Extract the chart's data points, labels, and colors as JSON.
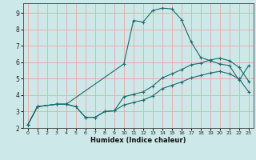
{
  "xlabel": "Humidex (Indice chaleur)",
  "bg_color": "#cce8e8",
  "line_color": "#1a6b6b",
  "grid_color": "#e8a8a8",
  "xlim": [
    -0.5,
    23.5
  ],
  "ylim": [
    2,
    9.6
  ],
  "xticks": [
    0,
    1,
    2,
    3,
    4,
    5,
    6,
    7,
    8,
    9,
    10,
    11,
    12,
    13,
    14,
    15,
    16,
    17,
    18,
    19,
    20,
    21,
    22,
    23
  ],
  "yticks": [
    2,
    3,
    4,
    5,
    6,
    7,
    8,
    9
  ],
  "series": {
    "peak": {
      "x": [
        0,
        1,
        3,
        4,
        10,
        11,
        12,
        13,
        14,
        15,
        16,
        17,
        18,
        19,
        20,
        21,
        22,
        23
      ],
      "y": [
        2.2,
        3.3,
        3.45,
        3.45,
        5.9,
        8.55,
        8.45,
        9.15,
        9.3,
        9.25,
        8.6,
        7.25,
        6.3,
        6.1,
        5.9,
        5.8,
        4.9,
        5.8
      ]
    },
    "upper": {
      "x": [
        0,
        1,
        3,
        4,
        5,
        6,
        7,
        8,
        9,
        10,
        11,
        12,
        13,
        14,
        15,
        16,
        17,
        18,
        19,
        20,
        21,
        22,
        23
      ],
      "y": [
        2.2,
        3.3,
        3.45,
        3.45,
        3.3,
        2.65,
        2.65,
        3.0,
        3.05,
        3.9,
        4.05,
        4.2,
        4.55,
        5.05,
        5.3,
        5.55,
        5.85,
        5.95,
        6.15,
        6.25,
        6.1,
        5.7,
        4.85
      ]
    },
    "lower": {
      "x": [
        0,
        1,
        3,
        4,
        5,
        6,
        7,
        8,
        9,
        10,
        11,
        12,
        13,
        14,
        15,
        16,
        17,
        18,
        19,
        20,
        21,
        22,
        23
      ],
      "y": [
        2.2,
        3.3,
        3.45,
        3.45,
        3.3,
        2.65,
        2.65,
        3.0,
        3.05,
        3.4,
        3.55,
        3.7,
        3.95,
        4.4,
        4.6,
        4.8,
        5.05,
        5.2,
        5.35,
        5.45,
        5.3,
        5.0,
        4.2
      ]
    }
  }
}
